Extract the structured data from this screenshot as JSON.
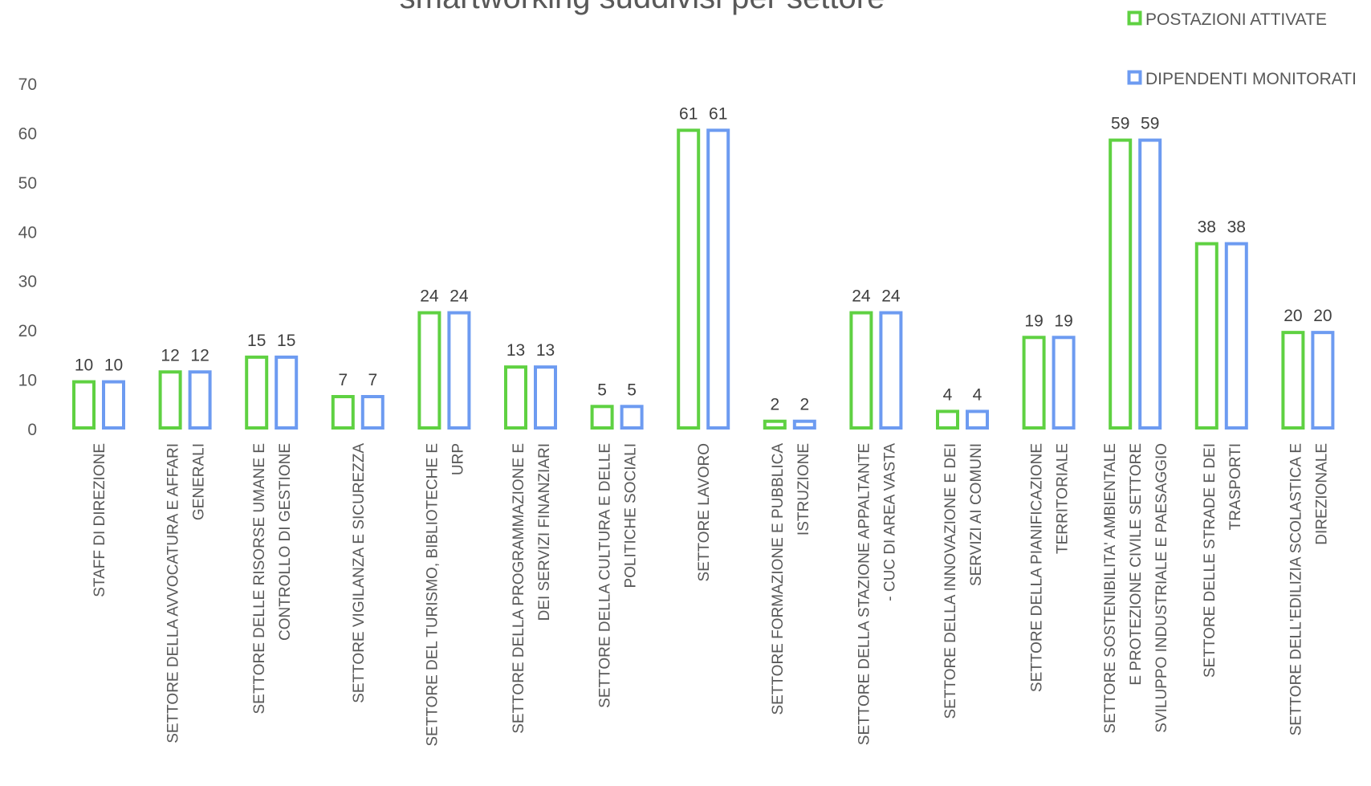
{
  "chart_data": {
    "type": "bar",
    "title": "smartworking suddivisi per settore",
    "ylim": [
      0,
      70
    ],
    "yticks": [
      0,
      10,
      20,
      30,
      40,
      50,
      60,
      70
    ],
    "grid": false,
    "legend": "top-right",
    "categories": [
      [
        "STAFF DI DIREZIONE"
      ],
      [
        "SETTORE DELLA AVVOCATURA E AFFARI",
        "GENERALI"
      ],
      [
        "SETTORE DELLE RISORSE UMANE E",
        "CONTROLLO DI GESTIONE"
      ],
      [
        "SETTORE VIGILANZA E SICUREZZA"
      ],
      [
        "SETTORE  DEL TURISMO, BIBLIOTECHE E",
        "URP"
      ],
      [
        "SETTORE DELLA PROGRAMMAZIONE E",
        "DEI SERVIZI FINANZIARI"
      ],
      [
        "SETTORE  DELLA CULTURA E DELLE",
        "POLITICHE SOCIALI"
      ],
      [
        "SETTORE LAVORO"
      ],
      [
        "SETTORE FORMAZIONE E PUBBLICA",
        "ISTRUZIONE"
      ],
      [
        "SETTORE DELLA STAZIONE APPALTANTE",
        "- CUC DI AREA VASTA"
      ],
      [
        "SETTORE  DELLA INNOVAZIONE E DEI",
        "SERVIZI AI COMUNI"
      ],
      [
        "SETTORE DELLA PIANIFICAZIONE",
        "TERRITORIALE"
      ],
      [
        "SETTORE SOSTENIBILITA' AMBIENTALE",
        "E PROTEZIONE CIVILE SETTORE",
        "SVILUPPO INDUSTRIALE E PAESAGGIO"
      ],
      [
        "SETTORE DELLE STRADE E DEI",
        "TRASPORTI"
      ],
      [
        "SETTORE DELL'EDILIZIA SCOLASTICA E",
        "DIREZIONALE"
      ]
    ],
    "series": [
      {
        "name": "POSTAZIONI ATTIVATE",
        "color": "#5fd142",
        "values": [
          10,
          12,
          15,
          7,
          24,
          13,
          5,
          61,
          2,
          24,
          4,
          19,
          59,
          38,
          20
        ]
      },
      {
        "name": "DIPENDENTI MONITORATI",
        "color": "#6d9bf1",
        "values": [
          10,
          12,
          15,
          7,
          24,
          13,
          5,
          61,
          2,
          24,
          4,
          19,
          59,
          38,
          20
        ]
      }
    ]
  }
}
